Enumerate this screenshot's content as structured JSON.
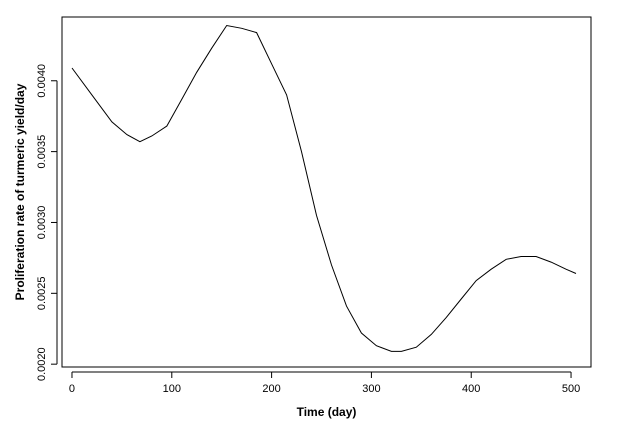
{
  "chart_data": {
    "type": "line",
    "xlabel": "Time (day)",
    "ylabel": "Proliferation rate of turmeric yield/day",
    "xlim": [
      -10,
      520
    ],
    "ylim": [
      0.00198,
      0.00445
    ],
    "xticks": [
      0,
      100,
      200,
      300,
      400,
      500
    ],
    "xtick_labels": [
      "0",
      "100",
      "200",
      "300",
      "400",
      "500"
    ],
    "yticks": [
      0.002,
      0.0025,
      0.003,
      0.0035,
      0.004
    ],
    "ytick_labels": [
      "0.0020",
      "0.0025",
      "0.0030",
      "0.0035",
      "0.0040"
    ],
    "grid": false,
    "series": [
      {
        "color": "#000000",
        "x": [
          0,
          20,
          40,
          55,
          68,
          80,
          95,
          110,
          125,
          140,
          155,
          170,
          185,
          200,
          215,
          230,
          245,
          260,
          275,
          290,
          305,
          320,
          330,
          345,
          360,
          375,
          390,
          405,
          420,
          435,
          450,
          465,
          480,
          495,
          505
        ],
        "y": [
          0.00409,
          0.0039,
          0.00371,
          0.00362,
          0.00357,
          0.00361,
          0.00368,
          0.00387,
          0.00406,
          0.00423,
          0.00439,
          0.00437,
          0.00434,
          0.00412,
          0.0039,
          0.0035,
          0.00305,
          0.0027,
          0.00241,
          0.00222,
          0.00213,
          0.00209,
          0.00209,
          0.00212,
          0.00221,
          0.00233,
          0.00246,
          0.00259,
          0.00267,
          0.00274,
          0.00276,
          0.00276,
          0.00272,
          0.00267,
          0.00264
        ]
      }
    ]
  }
}
